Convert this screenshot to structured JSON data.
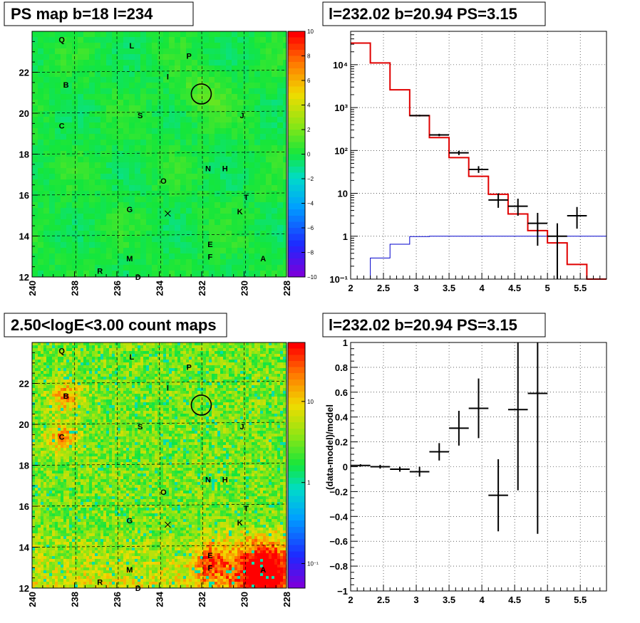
{
  "titles": {
    "ps_map": "PS map b=18 l=234",
    "spectrum": "l=232.02 b=20.94 PS=3.15",
    "count_map": "2.50<logE<3.00 count maps",
    "residual": "l=232.02 b=20.94 PS=3.15"
  },
  "colors": {
    "data": "#000000",
    "model": "#e00000",
    "background": "#0000cc",
    "grid": "#000000"
  },
  "sources": [
    {
      "name": "Q",
      "l": 238.6,
      "b": 23.6
    },
    {
      "name": "L",
      "l": 235.3,
      "b": 23.3
    },
    {
      "name": "P",
      "l": 232.6,
      "b": 22.8
    },
    {
      "name": "I",
      "l": 233.6,
      "b": 21.8
    },
    {
      "name": "B",
      "l": 238.4,
      "b": 21.4
    },
    {
      "name": "S",
      "l": 234.9,
      "b": 19.9
    },
    {
      "name": "J",
      "l": 230.1,
      "b": 19.9
    },
    {
      "name": "C",
      "l": 238.6,
      "b": 19.4
    },
    {
      "name": "N",
      "l": 231.7,
      "b": 17.3
    },
    {
      "name": "H",
      "l": 230.9,
      "b": 17.3
    },
    {
      "name": "O",
      "l": 233.8,
      "b": 16.7
    },
    {
      "name": "T",
      "l": 229.9,
      "b": 15.9
    },
    {
      "name": "G",
      "l": 235.4,
      "b": 15.3
    },
    {
      "name": "K",
      "l": 230.2,
      "b": 15.2
    },
    {
      "name": "E",
      "l": 231.6,
      "b": 13.6
    },
    {
      "name": "M",
      "l": 235.4,
      "b": 12.9
    },
    {
      "name": "F",
      "l": 231.6,
      "b": 13.0
    },
    {
      "name": "A",
      "l": 229.1,
      "b": 12.9
    },
    {
      "name": "R",
      "l": 236.8,
      "b": 12.3
    },
    {
      "name": "D",
      "l": 235.0,
      "b": 12.0
    }
  ],
  "markers": {
    "circle": {
      "l": 232.02,
      "b": 20.94
    },
    "cross": {
      "l": 233.6,
      "b": 15.1
    }
  },
  "chart_data": [
    {
      "type": "heatmap",
      "title": "PS map b=18 l=234",
      "xlim": [
        240,
        228
      ],
      "ylim": [
        12,
        24
      ],
      "x_ticks": [
        "240",
        "238",
        "236",
        "234",
        "232",
        "230",
        "228"
      ],
      "y_ticks": [
        "12",
        "14",
        "16",
        "18",
        "20",
        "22"
      ],
      "z_range": [
        -10,
        10
      ],
      "z_ticks": [
        "10",
        "8",
        "6",
        "4",
        "2",
        "0",
        "−2",
        "−4",
        "−6",
        "−8",
        "−10"
      ]
    },
    {
      "type": "line",
      "title": "l=232.02 b=20.94 PS=3.15",
      "log_y": true,
      "xlim": [
        2,
        5.9
      ],
      "ylim": [
        0.1,
        60000
      ],
      "x_ticks": [
        "2",
        "2.5",
        "3",
        "3.5",
        "4",
        "4.5",
        "5",
        "5.5"
      ],
      "y_ticks": [
        "10⁻¹",
        "1",
        "10",
        "10²",
        "10³",
        "10⁴"
      ],
      "bin_edges": [
        2.0,
        2.3,
        2.6,
        2.9,
        3.2,
        3.5,
        3.8,
        4.1,
        4.4,
        4.7,
        5.0,
        5.3,
        5.6,
        5.9
      ],
      "series": [
        {
          "values": [
            32000,
            11000,
            2600,
            650,
            200,
            68,
            25,
            9.5,
            3.3,
            1.35,
            0.7,
            0.22,
            0.1
          ]
        },
        {
          "values": [
            0.04,
            0.31,
            0.65,
            0.98,
            1.0,
            1.0,
            1.0,
            1.0,
            1.0,
            1.0,
            1.0,
            1.0,
            1.0
          ]
        }
      ],
      "data_points": [
        {
          "x": 3.05,
          "y": 650,
          "xerr": 0.15,
          "ylo": 620,
          "yhi": 680
        },
        {
          "x": 3.35,
          "y": 230,
          "xerr": 0.15,
          "ylo": 215,
          "yhi": 245
        },
        {
          "x": 3.65,
          "y": 88,
          "xerr": 0.15,
          "ylo": 78,
          "yhi": 98
        },
        {
          "x": 3.95,
          "y": 36,
          "xerr": 0.15,
          "ylo": 30,
          "yhi": 43
        },
        {
          "x": 4.25,
          "y": 7,
          "xerr": 0.15,
          "ylo": 4.6,
          "yhi": 10
        },
        {
          "x": 4.55,
          "y": 5,
          "xerr": 0.15,
          "ylo": 3,
          "yhi": 7.5
        },
        {
          "x": 4.85,
          "y": 2,
          "xerr": 0.15,
          "ylo": 0.6,
          "yhi": 3.5
        },
        {
          "x": 5.15,
          "y": 1,
          "xerr": 0.15,
          "ylo": 0.1,
          "yhi": 2
        },
        {
          "x": 5.45,
          "y": 3,
          "xerr": 0.15,
          "ylo": 1.5,
          "yhi": 4.8
        }
      ]
    },
    {
      "type": "heatmap",
      "title": "2.50<logE<3.00 count maps",
      "xlim": [
        240,
        228
      ],
      "ylim": [
        12,
        24
      ],
      "x_ticks": [
        "240",
        "238",
        "236",
        "234",
        "232",
        "230",
        "228"
      ],
      "y_ticks": [
        "12",
        "14",
        "16",
        "18",
        "20",
        "22"
      ],
      "log_z": true,
      "z_ticks": [
        "10",
        "1",
        "10⁻¹"
      ]
    },
    {
      "type": "scatter",
      "title": "l=232.02 b=20.94 PS=3.15",
      "ylabel": "(data-model)/model",
      "xlim": [
        2,
        5.9
      ],
      "ylim": [
        -1,
        1
      ],
      "x_ticks": [
        "2",
        "2.5",
        "3",
        "3.5",
        "4",
        "4.5",
        "5",
        "5.5"
      ],
      "y_ticks": [
        "−1",
        "−0.8",
        "−0.6",
        "−0.4",
        "−0.2",
        "0",
        "0.2",
        "0.4",
        "0.6",
        "0.8",
        "1"
      ],
      "points": [
        {
          "x": 2.15,
          "y": 0.01,
          "xerr": 0.15,
          "yerr": 0.01
        },
        {
          "x": 2.45,
          "y": 0.0,
          "xerr": 0.15,
          "yerr": 0.015
        },
        {
          "x": 2.75,
          "y": -0.02,
          "xerr": 0.15,
          "yerr": 0.02
        },
        {
          "x": 3.05,
          "y": -0.04,
          "xerr": 0.15,
          "yerr": 0.04
        },
        {
          "x": 3.35,
          "y": 0.12,
          "xerr": 0.15,
          "yerr": 0.07
        },
        {
          "x": 3.65,
          "y": 0.31,
          "xerr": 0.15,
          "yerr": 0.14
        },
        {
          "x": 3.95,
          "y": 0.47,
          "xerr": 0.15,
          "yerr": 0.24
        },
        {
          "x": 4.25,
          "y": -0.23,
          "xerr": 0.15,
          "yerr": 0.29
        },
        {
          "x": 4.55,
          "y": 0.46,
          "xerr": 0.15,
          "yerr": 0.65
        },
        {
          "x": 4.85,
          "y": 0.59,
          "xerr": 0.15,
          "yerr": 1.13
        }
      ]
    }
  ]
}
